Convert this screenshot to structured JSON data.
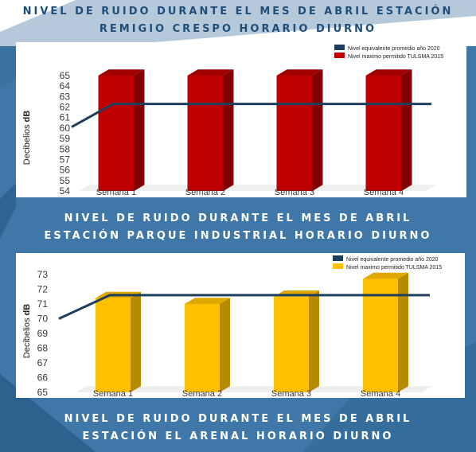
{
  "colors": {
    "background": "#3f78a8",
    "title_dark": "#1f4e79",
    "title_light": "#ffffff",
    "line": "#1f3d5c",
    "red_front": "#c00000",
    "red_side": "#7e0000",
    "red_top": "#a00000",
    "yellow_front": "#ffc000",
    "yellow_side": "#b88a00",
    "yellow_top": "#e0a800"
  },
  "headings": {
    "h1": [
      "NIVEL DE RUIDO DURANTE EL MES DE ABRIL ESTACIÓN",
      "REMIGIO CRESPO HORARIO DIURNO"
    ],
    "h2": [
      "NIVEL DE RUIDO DURANTE EL MES DE ABRIL",
      "ESTACIÓN PARQUE INDUSTRIAL HORARIO DIURNO"
    ],
    "h3": [
      "NIVEL DE RUIDO DURANTE EL MES DE ABRIL",
      "ESTACIÓN EL ARENAL HORARIO DIURNO"
    ]
  },
  "chart_data": [
    {
      "type": "bar",
      "categories": [
        "Semana 1",
        "Semana 2",
        "Semana 3",
        "Semana 4"
      ],
      "ylabel_prefix": "Decibelios ",
      "ylabel_unit": "dB",
      "ylim": [
        54,
        65
      ],
      "yticks": [
        54,
        55,
        56,
        57,
        58,
        59,
        60,
        61,
        62,
        63,
        64,
        65
      ],
      "grid": false,
      "legend_position": "top-right",
      "series": [
        {
          "name": "Nivel equivalente promedio año 2020",
          "kind": "line",
          "values": [
            62.3,
            62.3,
            62.3,
            62.3
          ],
          "start_value": 60.1,
          "end_value": 62.3
        },
        {
          "name": "Nivel maximo permitido TULSMA 2015",
          "kind": "bar3d",
          "values": [
            65,
            65,
            65,
            65
          ]
        }
      ]
    },
    {
      "type": "bar",
      "categories": [
        "Semana 1",
        "Semana 2",
        "Semana 3",
        "Semana 4"
      ],
      "ylabel_prefix": "Decibelios ",
      "ylabel_unit": "dB",
      "ylim": [
        65,
        73
      ],
      "yticks": [
        65,
        66,
        67,
        68,
        69,
        70,
        71,
        72,
        73
      ],
      "grid": false,
      "legend_position": "top-right",
      "series": [
        {
          "name": "Nivel equivalente promedio año 2020",
          "kind": "line",
          "values": [
            71.6,
            71.6,
            71.6,
            71.6
          ],
          "start_value": 70.0,
          "end_value": 71.6
        },
        {
          "name": "Nivel maximo permitido TULSMA 2015",
          "kind": "bar3d",
          "values": [
            71.4,
            71.0,
            71.5,
            72.7
          ]
        }
      ]
    }
  ]
}
